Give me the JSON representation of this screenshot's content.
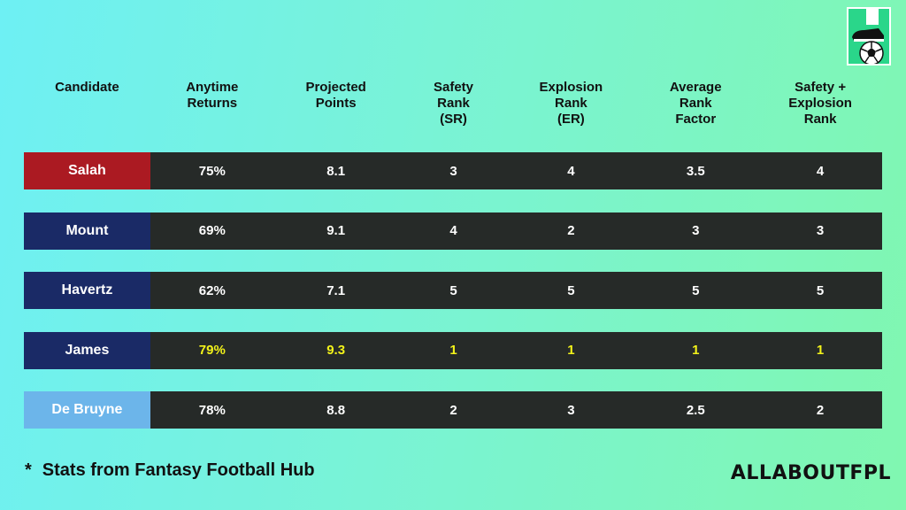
{
  "header": {
    "columns": [
      "Candidate",
      "Anytime\nReturns",
      "Projected\nPoints",
      "Safety\nRank\n(SR)",
      "Explosion\nRank\n(ER)",
      "Average\nRank\nFactor",
      "Safety +\nExplosion\nRank"
    ]
  },
  "rows": [
    {
      "name": "Salah",
      "name_bg": "#ab1a22",
      "values": [
        "75%",
        "8.1",
        "3",
        "4",
        "3.5",
        "4"
      ],
      "highlight": false
    },
    {
      "name": "Mount",
      "name_bg": "#1a2a66",
      "values": [
        "69%",
        "9.1",
        "4",
        "2",
        "3",
        "3"
      ],
      "highlight": false
    },
    {
      "name": "Havertz",
      "name_bg": "#1a2a66",
      "values": [
        "62%",
        "7.1",
        "5",
        "5",
        "5",
        "5"
      ],
      "highlight": false
    },
    {
      "name": "James",
      "name_bg": "#1a2a66",
      "values": [
        "79%",
        "9.3",
        "1",
        "1",
        "1",
        "1"
      ],
      "highlight": true
    },
    {
      "name": "De Bruyne",
      "name_bg": "#6cb5ea",
      "values": [
        "78%",
        "8.8",
        "2",
        "3",
        "2.5",
        "2"
      ],
      "highlight": false
    }
  ],
  "colors": {
    "highlight": "#f2f21a",
    "row_bg": "#262a28"
  },
  "footnote": {
    "star": "*",
    "text": "Stats from Fantasy Football Hub"
  },
  "brand": "ALLABOUTFPL",
  "logo_icon": "boot-and-ball-icon"
}
